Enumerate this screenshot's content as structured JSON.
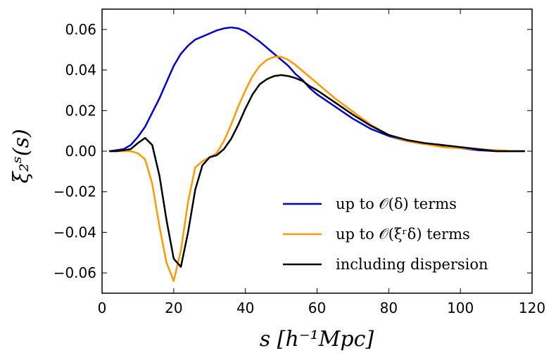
{
  "chart_data": {
    "type": "line",
    "xlabel": "s [h⁻¹Mpc]",
    "ylabel": "ξ₂ˢ(s)",
    "xlim": [
      0,
      120
    ],
    "ylim": [
      -0.07,
      0.07
    ],
    "xticks": [
      0,
      20,
      40,
      60,
      80,
      100,
      120
    ],
    "xtick_labels": [
      "0",
      "20",
      "40",
      "60",
      "80",
      "100",
      "120"
    ],
    "yticks": [
      -0.06,
      -0.04,
      -0.02,
      0.0,
      0.02,
      0.04,
      0.06
    ],
    "ytick_labels": [
      "−0.06",
      "−0.04",
      "−0.02",
      "0.00",
      "0.02",
      "0.04",
      "0.06"
    ],
    "grid": false,
    "legend_position": "bottom-right",
    "series": [
      {
        "name": "up to 𝒪(δ) terms",
        "color": "#0000cc",
        "x": [
          2,
          4,
          6,
          8,
          10,
          12,
          14,
          16,
          18,
          20,
          22,
          24,
          26,
          28,
          30,
          32,
          34,
          36,
          38,
          40,
          42,
          44,
          46,
          48,
          50,
          52,
          54,
          56,
          58,
          60,
          65,
          70,
          75,
          80,
          85,
          90,
          95,
          100,
          105,
          110,
          115,
          118
        ],
        "y": [
          0.0,
          0.0005,
          0.001,
          0.003,
          0.007,
          0.012,
          0.019,
          0.026,
          0.034,
          0.042,
          0.048,
          0.052,
          0.055,
          0.0565,
          0.058,
          0.0595,
          0.0605,
          0.061,
          0.0605,
          0.059,
          0.0565,
          0.054,
          0.051,
          0.048,
          0.045,
          0.042,
          0.038,
          0.035,
          0.031,
          0.028,
          0.022,
          0.016,
          0.011,
          0.0075,
          0.005,
          0.0035,
          0.0025,
          0.0015,
          0.0005,
          0.0,
          0.0,
          0.0
        ]
      },
      {
        "name": "up to 𝒪(ξʳδ) terms",
        "color": "#ff9900",
        "x": [
          2,
          4,
          6,
          8,
          10,
          12,
          14,
          16,
          18,
          20,
          22,
          24,
          26,
          28,
          30,
          32,
          34,
          36,
          38,
          40,
          42,
          44,
          46,
          48,
          50,
          52,
          54,
          56,
          58,
          60,
          65,
          70,
          75,
          80,
          85,
          90,
          95,
          100,
          105,
          110,
          115,
          118
        ],
        "y": [
          0.0,
          0.0,
          0.0,
          0.0,
          -0.001,
          -0.004,
          -0.016,
          -0.037,
          -0.055,
          -0.064,
          -0.049,
          -0.025,
          -0.008,
          -0.005,
          -0.003,
          -0.001,
          0.005,
          0.013,
          0.022,
          0.03,
          0.037,
          0.042,
          0.045,
          0.0465,
          0.0465,
          0.045,
          0.0425,
          0.0395,
          0.0365,
          0.0335,
          0.026,
          0.0195,
          0.013,
          0.008,
          0.005,
          0.0035,
          0.002,
          0.0015,
          0.001,
          0.0005,
          0.0,
          0.0
        ]
      },
      {
        "name": "including dispersion",
        "color": "#000000",
        "x": [
          2,
          4,
          6,
          8,
          10,
          12,
          14,
          16,
          18,
          20,
          22,
          24,
          26,
          28,
          30,
          32,
          34,
          36,
          38,
          40,
          42,
          44,
          46,
          48,
          50,
          52,
          54,
          56,
          58,
          60,
          65,
          70,
          75,
          80,
          85,
          90,
          95,
          100,
          105,
          110,
          115,
          118
        ],
        "y": [
          0.0,
          0.0,
          0.0005,
          0.001,
          0.004,
          0.0065,
          0.003,
          -0.012,
          -0.034,
          -0.053,
          -0.057,
          -0.04,
          -0.019,
          -0.007,
          -0.003,
          -0.002,
          0.001,
          0.006,
          0.013,
          0.021,
          0.028,
          0.033,
          0.0355,
          0.037,
          0.0375,
          0.037,
          0.036,
          0.0345,
          0.032,
          0.03,
          0.024,
          0.018,
          0.0125,
          0.008,
          0.0055,
          0.004,
          0.003,
          0.002,
          0.001,
          0.0,
          0.0,
          0.0
        ]
      }
    ]
  }
}
